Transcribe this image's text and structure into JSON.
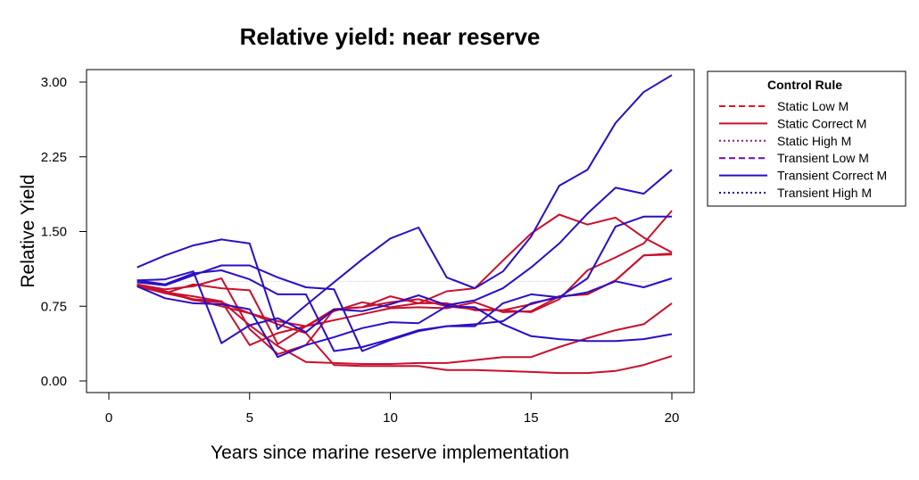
{
  "chart_data": {
    "type": "line",
    "title": "Relative yield: near reserve",
    "xlabel": "Years since marine reserve implementation",
    "ylabel": "Relative Yield",
    "xlim": [
      0,
      20
    ],
    "ylim": [
      0,
      3.1
    ],
    "x_ticks": [
      "0",
      "5",
      "10",
      "15",
      "20"
    ],
    "y_ticks": [
      "0.00",
      "0.75",
      "1.50",
      "2.25",
      "3.00"
    ],
    "reference_line": {
      "y": 1.0,
      "style": "dotted",
      "color": "#bbbbbb"
    },
    "legend": {
      "title": "Control Rule",
      "placement": "right",
      "entries": [
        {
          "label": "Static Low M",
          "color": "#e8141d",
          "dash": "dashed"
        },
        {
          "label": "Static Correct M",
          "color": "#c8102e",
          "dash": "solid"
        },
        {
          "label": "Static High M",
          "color": "#8b1a7a",
          "dash": "dotted"
        },
        {
          "label": "Transient Low M",
          "color": "#6a0dad",
          "dash": "dashed"
        },
        {
          "label": "Transient Correct M",
          "color": "#2a0fc4",
          "dash": "solid"
        },
        {
          "label": "Transient High M",
          "color": "#0a0ab0",
          "dash": "dotted"
        }
      ]
    },
    "x": [
      1,
      2,
      3,
      4,
      5,
      6,
      7,
      8,
      9,
      10,
      11,
      12,
      13,
      14,
      15,
      16,
      17,
      18,
      19,
      20
    ],
    "series": [
      {
        "color": "#c8102e",
        "values": [
          0.97,
          0.92,
          0.95,
          1.03,
          0.52,
          0.27,
          0.36,
          0.72,
          0.74,
          0.79,
          0.82,
          0.75,
          0.72,
          0.71,
          0.69,
          0.82,
          1.11,
          1.24,
          1.38,
          1.71
        ]
      },
      {
        "color": "#c8102e",
        "values": [
          0.97,
          0.88,
          0.97,
          0.93,
          0.91,
          0.37,
          0.55,
          0.72,
          0.74,
          0.85,
          0.78,
          0.78,
          0.71,
          0.71,
          0.77,
          0.85,
          0.87,
          1.01,
          1.26,
          1.27
        ]
      },
      {
        "color": "#c8102e",
        "values": [
          0.96,
          0.9,
          0.82,
          0.8,
          0.36,
          0.48,
          0.55,
          0.7,
          0.79,
          0.74,
          0.78,
          0.9,
          0.93,
          1.21,
          1.48,
          1.67,
          1.57,
          1.64,
          1.44,
          1.29
        ]
      },
      {
        "color": "#c8102e",
        "values": [
          0.95,
          0.88,
          0.82,
          0.75,
          0.68,
          0.6,
          0.55,
          0.61,
          0.67,
          0.73,
          0.74,
          0.73,
          0.79,
          0.69,
          0.7,
          0.85,
          0.87,
          1.01,
          1.26,
          1.28
        ]
      },
      {
        "color": "#c8102e",
        "values": [
          0.97,
          0.9,
          0.81,
          0.79,
          0.68,
          0.57,
          0.48,
          0.16,
          0.15,
          0.15,
          0.15,
          0.11,
          0.11,
          0.1,
          0.09,
          0.08,
          0.08,
          0.1,
          0.16,
          0.25
        ]
      },
      {
        "color": "#c8102e",
        "values": [
          0.96,
          0.89,
          0.85,
          0.8,
          0.56,
          0.35,
          0.19,
          0.18,
          0.17,
          0.17,
          0.18,
          0.18,
          0.21,
          0.24,
          0.24,
          0.34,
          0.43,
          0.51,
          0.57,
          0.78
        ]
      },
      {
        "color": "#2a0fc4",
        "values": [
          1.14,
          1.26,
          1.36,
          1.42,
          1.38,
          0.52,
          0.76,
          0.99,
          1.22,
          1.43,
          1.54,
          1.04,
          0.93,
          1.1,
          1.45,
          1.96,
          2.12,
          2.59,
          2.9,
          3.07
        ]
      },
      {
        "color": "#2a0fc4",
        "values": [
          1.01,
          1.02,
          1.1,
          0.38,
          0.56,
          0.63,
          0.49,
          0.72,
          0.7,
          0.77,
          0.86,
          0.76,
          0.81,
          0.93,
          1.14,
          1.38,
          1.68,
          1.94,
          1.88,
          2.12
        ]
      },
      {
        "color": "#2a0fc4",
        "values": [
          0.99,
          0.96,
          1.06,
          1.16,
          1.16,
          1.04,
          0.94,
          0.92,
          0.3,
          0.41,
          0.5,
          0.55,
          0.57,
          0.6,
          0.78,
          0.84,
          1.03,
          1.55,
          1.65,
          1.65
        ]
      },
      {
        "color": "#2a0fc4",
        "values": [
          1.01,
          0.97,
          1.08,
          1.11,
          1.02,
          0.87,
          0.87,
          0.3,
          0.34,
          0.42,
          0.51,
          0.55,
          0.55,
          0.78,
          0.87,
          0.84,
          0.89,
          1.0,
          0.94,
          1.03
        ]
      },
      {
        "color": "#2a0fc4",
        "values": [
          0.95,
          0.83,
          0.78,
          0.77,
          0.72,
          0.24,
          0.36,
          0.44,
          0.53,
          0.59,
          0.58,
          0.75,
          0.74,
          0.57,
          0.45,
          0.42,
          0.4,
          0.4,
          0.42,
          0.47
        ]
      }
    ]
  }
}
